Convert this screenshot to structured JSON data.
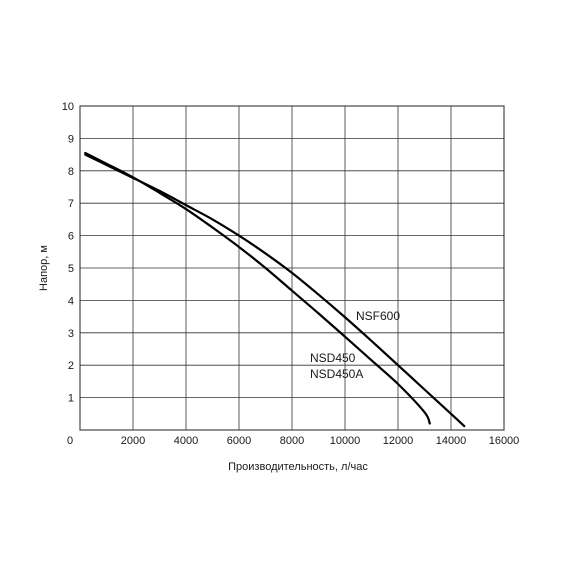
{
  "chart_data": {
    "type": "line",
    "title": "",
    "xlabel": "Производительность, л/час",
    "ylabel": "Напор, м",
    "xlim": [
      0,
      16000
    ],
    "ylim": [
      0,
      10
    ],
    "grid": true,
    "x_ticks": [
      "0",
      "2000",
      "4000",
      "6000",
      "8000",
      "10000",
      "12000",
      "14000",
      "16000"
    ],
    "y_ticks": [
      "1",
      "2",
      "3",
      "4",
      "5",
      "6",
      "7",
      "8",
      "9",
      "10"
    ],
    "series": [
      {
        "name": "NSF600",
        "color": "#000000",
        "points": [
          [
            200,
            8.5
          ],
          [
            1000,
            8.18
          ],
          [
            2000,
            7.78
          ],
          [
            3000,
            7.38
          ],
          [
            4000,
            6.94
          ],
          [
            5000,
            6.5
          ],
          [
            6000,
            6.0
          ],
          [
            7000,
            5.45
          ],
          [
            8000,
            4.85
          ],
          [
            9000,
            4.18
          ],
          [
            10000,
            3.48
          ],
          [
            11000,
            2.75
          ],
          [
            12000,
            2.0
          ],
          [
            13000,
            1.25
          ],
          [
            14000,
            0.5
          ],
          [
            14500,
            0.12
          ]
        ]
      },
      {
        "name": "NSD450\nNSD450A",
        "color": "#000000",
        "points": [
          [
            200,
            8.55
          ],
          [
            1000,
            8.22
          ],
          [
            2000,
            7.8
          ],
          [
            3000,
            7.32
          ],
          [
            4000,
            6.82
          ],
          [
            5000,
            6.25
          ],
          [
            6000,
            5.65
          ],
          [
            7000,
            5.0
          ],
          [
            8000,
            4.3
          ],
          [
            9000,
            3.6
          ],
          [
            10000,
            2.88
          ],
          [
            11000,
            2.15
          ],
          [
            12000,
            1.42
          ],
          [
            13000,
            0.55
          ],
          [
            13200,
            0.2
          ]
        ]
      }
    ]
  }
}
